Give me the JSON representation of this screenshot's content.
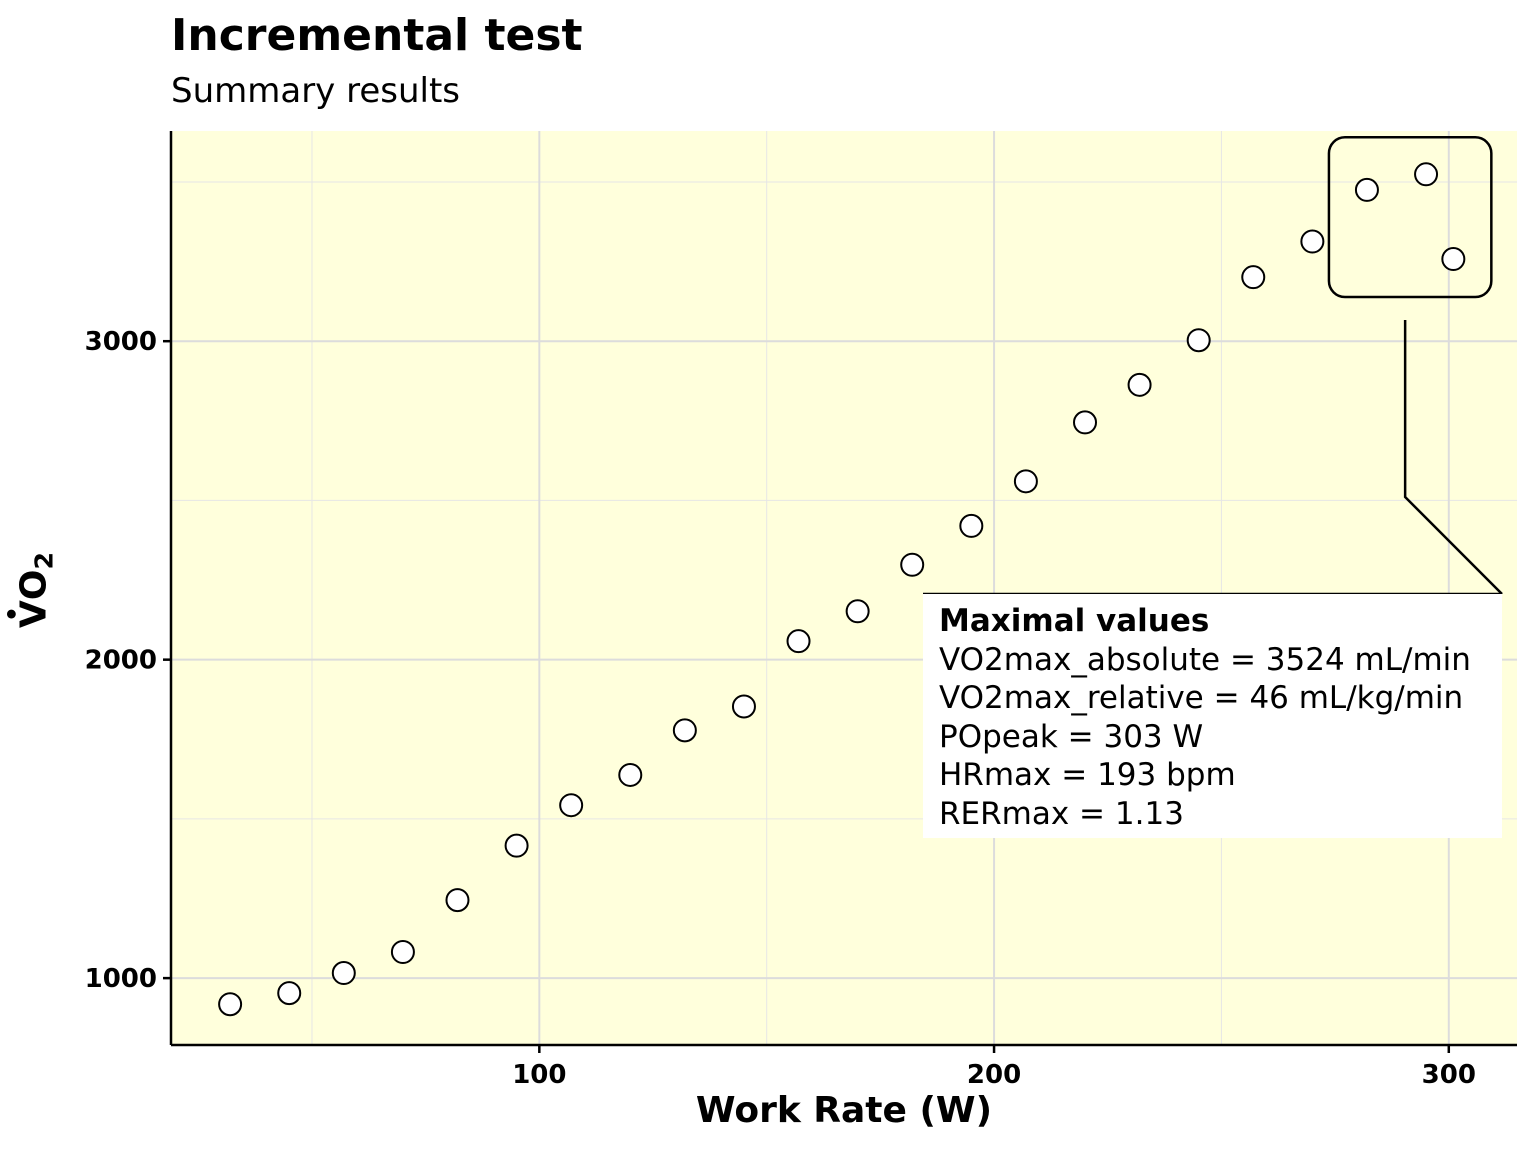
{
  "title": "Incremental test",
  "subtitle": "Summary results",
  "chart_data": {
    "type": "scatter",
    "title": "Incremental test",
    "subtitle": "Summary results",
    "xlabel": "Work Rate (W)",
    "ylabel": "VO2",
    "xlim": [
      19,
      315
    ],
    "ylim": [
      790,
      3660
    ],
    "x_ticks": [
      "100",
      "200",
      "300"
    ],
    "y_ticks": [
      "1000",
      "2000",
      "3000"
    ],
    "grid": true,
    "panel_background": "#FFFFDC",
    "point_fill": "#ffffff",
    "point_stroke": "#000000",
    "x": [
      32,
      45,
      57,
      70,
      82,
      95,
      107,
      120,
      132,
      145,
      157,
      170,
      182,
      195,
      207,
      220,
      232,
      245,
      257,
      270,
      282,
      295,
      301
    ],
    "y": [
      918,
      953,
      1016,
      1082,
      1245,
      1416,
      1543,
      1638,
      1778,
      1853,
      2058,
      2152,
      2298,
      2420,
      2560,
      2745,
      2863,
      3003,
      3201,
      3313,
      3475,
      3524,
      3258
    ],
    "highlight_points": [
      20,
      21,
      22
    ],
    "annotation": {
      "heading": "Maximal values",
      "lines": [
        "VO2max_absolute = 3524 mL/min",
        "VO2max_relative = 46 mL/kg/min",
        "POpeak = 303 W",
        "HRmax = 193 bpm",
        "RERmax = 1.13"
      ]
    }
  }
}
